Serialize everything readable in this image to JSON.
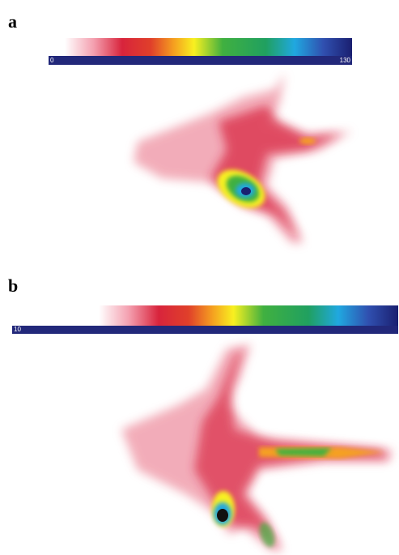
{
  "panels": [
    {
      "label": "a",
      "scale_min": 0,
      "scale_max": 130
    },
    {
      "label": "b",
      "scale_min": 10
    }
  ]
}
